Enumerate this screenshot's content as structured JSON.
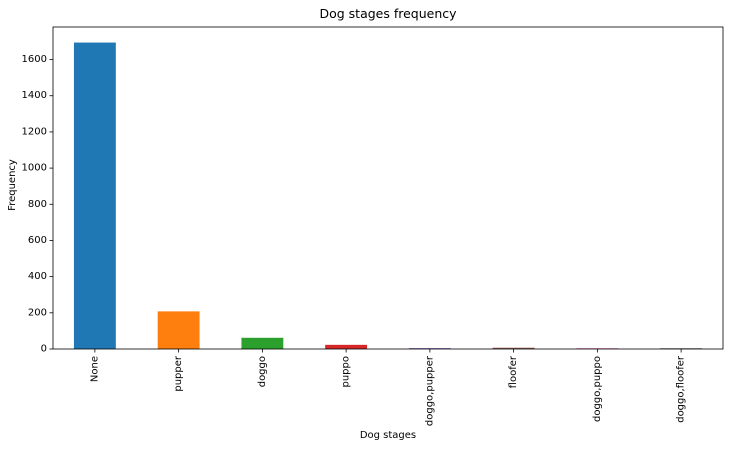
{
  "chart_data": {
    "type": "bar",
    "title": "Dog stages frequency",
    "xlabel": "Dog stages",
    "ylabel": "Frequency",
    "categories": [
      "None",
      "pupper",
      "doggo",
      "puppo",
      "doggo,pupper",
      "floofer",
      "doggo,puppo",
      "doggo,floofer"
    ],
    "values": [
      1694,
      208,
      62,
      23,
      5,
      7,
      1,
      1
    ],
    "colors": [
      "#1f77b4",
      "#ff7f0e",
      "#2ca02c",
      "#d62728",
      "#9467bd",
      "#8c564b",
      "#e377c2",
      "#7f7f7f"
    ],
    "ylim": [
      0,
      1780
    ],
    "yticks": [
      0,
      200,
      400,
      600,
      800,
      1000,
      1200,
      1400,
      1600
    ],
    "grid": false,
    "legend": "none"
  }
}
